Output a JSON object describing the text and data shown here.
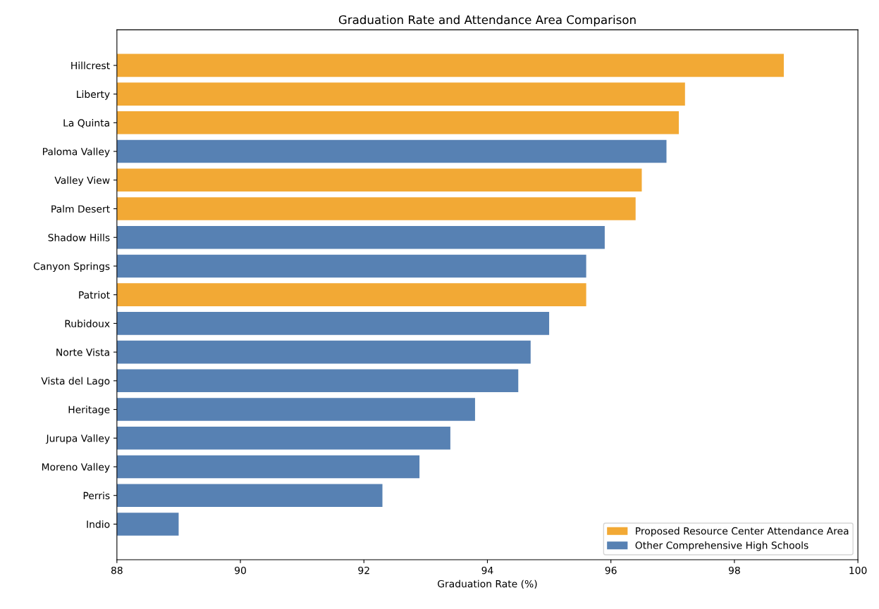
{
  "chart_data": {
    "type": "bar",
    "orientation": "horizontal",
    "title": "Graduation Rate and Attendance Area Comparison",
    "xlabel": "Graduation Rate (%)",
    "categories": [
      "Hillcrest",
      "Liberty",
      "La Quinta",
      "Paloma Valley",
      "Valley View",
      "Palm Desert",
      "Shadow Hills",
      "Canyon Springs",
      "Patriot",
      "Rubidoux",
      "Norte Vista",
      "Vista del Lago",
      "Heritage",
      "Jurupa Valley",
      "Moreno Valley",
      "Perris",
      "Indio"
    ],
    "series": [
      {
        "name": "Proposed Resource Center Attendance Area",
        "color": "#f2a935",
        "values": [
          98.8,
          97.2,
          97.1,
          null,
          96.5,
          96.4,
          null,
          null,
          95.6,
          null,
          null,
          null,
          null,
          null,
          null,
          null,
          null
        ]
      },
      {
        "name": "Other Comprehensive High Schools",
        "color": "#5781b3",
        "values": [
          null,
          null,
          null,
          96.9,
          null,
          null,
          95.9,
          95.6,
          null,
          95.0,
          94.7,
          94.5,
          93.8,
          93.4,
          92.9,
          92.3,
          89.0
        ]
      }
    ],
    "xlim": [
      88,
      100
    ],
    "xticks": [
      88,
      90,
      92,
      94,
      96,
      98,
      100
    ],
    "grid": false,
    "legend": "bottom right"
  }
}
